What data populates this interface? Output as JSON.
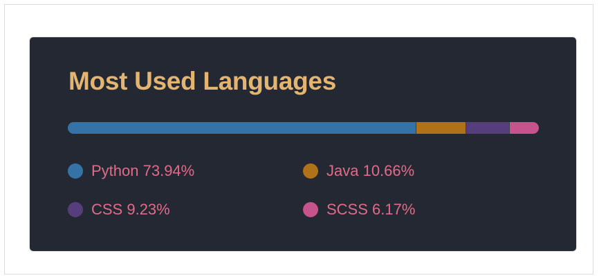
{
  "card": {
    "title": "Most Used Languages",
    "title_color": "#e4b571",
    "text_color": "#e06c8a",
    "background": "#242832"
  },
  "languages": [
    {
      "name": "Python",
      "percent": 73.94,
      "label": "Python 73.94%",
      "color": "#3572a5"
    },
    {
      "name": "Java",
      "percent": 10.66,
      "label": "Java 10.66%",
      "color": "#b07219"
    },
    {
      "name": "CSS",
      "percent": 9.23,
      "label": "CSS 9.23%",
      "color": "#563d7c"
    },
    {
      "name": "SCSS",
      "percent": 6.17,
      "label": "SCSS 6.17%",
      "color": "#c6538c"
    }
  ]
}
